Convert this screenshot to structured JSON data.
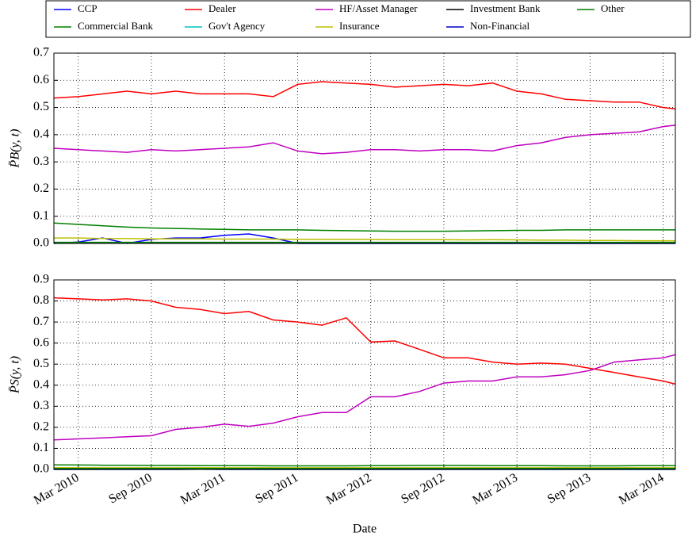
{
  "chart_data": [
    {
      "type": "line",
      "ylabel": "P̄B(y, t)",
      "x": [
        "2010-01",
        "2010-03",
        "2010-05",
        "2010-07",
        "2010-09",
        "2010-11",
        "2011-01",
        "2011-03",
        "2011-05",
        "2011-07",
        "2011-09",
        "2011-11",
        "2012-01",
        "2012-03",
        "2012-05",
        "2012-07",
        "2012-09",
        "2012-11",
        "2013-01",
        "2013-03",
        "2013-05",
        "2013-07",
        "2013-09",
        "2013-11",
        "2014-01",
        "2014-03",
        "2014-04"
      ],
      "xlim": [
        "2010-01",
        "2014-04"
      ],
      "xticks": [
        "2010-03",
        "2010-09",
        "2011-03",
        "2011-09",
        "2012-03",
        "2012-09",
        "2013-03",
        "2013-09",
        "2014-03"
      ],
      "ylim": [
        0,
        0.7
      ],
      "yticks": [
        {
          "value": 0,
          "label": "0.0"
        },
        0.1,
        0.2,
        0.3,
        0.4,
        0.5,
        0.6,
        0.7
      ],
      "grid": true,
      "series": [
        {
          "name": "CCP",
          "color": "#0000ff",
          "values": [
            0,
            0.005,
            0.02,
            0,
            0.015,
            0.02,
            0.02,
            0.03,
            0.035,
            0.02,
            0,
            0,
            0,
            0,
            0,
            0,
            0,
            0,
            0,
            0,
            0,
            0,
            0,
            0,
            0,
            0,
            0
          ]
        },
        {
          "name": "Commercial Bank",
          "color": "#008000",
          "values": [
            0.075,
            0.07,
            0.065,
            0.06,
            0.057,
            0.055,
            0.053,
            0.052,
            0.05,
            0.05,
            0.05,
            0.048,
            0.047,
            0.046,
            0.045,
            0.045,
            0.045,
            0.046,
            0.047,
            0.048,
            0.048,
            0.05,
            0.05,
            0.05,
            0.05,
            0.05,
            0.05
          ]
        },
        {
          "name": "Dealer",
          "color": "#ff0000",
          "values": [
            0.535,
            0.54,
            0.55,
            0.56,
            0.55,
            0.56,
            0.55,
            0.55,
            0.55,
            0.54,
            0.585,
            0.595,
            0.59,
            0.585,
            0.575,
            0.58,
            0.585,
            0.58,
            0.59,
            0.56,
            0.55,
            0.53,
            0.525,
            0.52,
            0.52,
            0.5,
            0.495
          ]
        },
        {
          "name": "Gov't Agency",
          "color": "#00bfbf",
          "values": [
            0.002,
            0.002,
            0.002,
            0.002,
            0.002,
            0.002,
            0.002,
            0.002,
            0.002,
            0.002,
            0.002,
            0.002,
            0.002,
            0.002,
            0.002,
            0.002,
            0.002,
            0.002,
            0.002,
            0.002,
            0.002,
            0.002,
            0.002,
            0.002,
            0.002,
            0.002,
            0.002
          ]
        },
        {
          "name": "HF/Asset Manager",
          "color": "#bf00bf",
          "values": [
            0.35,
            0.345,
            0.34,
            0.335,
            0.345,
            0.34,
            0.345,
            0.35,
            0.355,
            0.37,
            0.34,
            0.33,
            0.335,
            0.345,
            0.345,
            0.34,
            0.345,
            0.345,
            0.34,
            0.36,
            0.37,
            0.39,
            0.4,
            0.405,
            0.41,
            0.43,
            0.435
          ]
        },
        {
          "name": "Insurance",
          "color": "#bfbf00",
          "values": [
            0.02,
            0.02,
            0.018,
            0.018,
            0.017,
            0.017,
            0.017,
            0.016,
            0.016,
            0.016,
            0.015,
            0.015,
            0.015,
            0.015,
            0.014,
            0.014,
            0.014,
            0.013,
            0.014,
            0.013,
            0.012,
            0.012,
            0.011,
            0.011,
            0.01,
            0.01,
            0.01
          ]
        },
        {
          "name": "Investment Bank",
          "color": "#000000",
          "values": [
            0.003,
            0.003,
            0.003,
            0.003,
            0.003,
            0.003,
            0.003,
            0.003,
            0.003,
            0.003,
            0.003,
            0.003,
            0.003,
            0.003,
            0.003,
            0.003,
            0.003,
            0.003,
            0.003,
            0.003,
            0.003,
            0.003,
            0.003,
            0.003,
            0.003,
            0.003,
            0.003
          ]
        },
        {
          "name": "Non-Financial",
          "color": "#0000bf",
          "values": [
            0.001,
            0.001,
            0.001,
            0.001,
            0.001,
            0.001,
            0.001,
            0.001,
            0.001,
            0.001,
            0.001,
            0.001,
            0.001,
            0.001,
            0.001,
            0.001,
            0.001,
            0.001,
            0.001,
            0.001,
            0.001,
            0.001,
            0.001,
            0.001,
            0.001,
            0.001,
            0.001
          ]
        },
        {
          "name": "Other",
          "color": "#007f00",
          "values": [
            0.004,
            0.004,
            0.004,
            0.004,
            0.004,
            0.004,
            0.004,
            0.004,
            0.004,
            0.004,
            0.004,
            0.004,
            0.004,
            0.004,
            0.004,
            0.004,
            0.004,
            0.004,
            0.004,
            0.004,
            0.004,
            0.004,
            0.004,
            0.004,
            0.004,
            0.004,
            0.004
          ]
        }
      ]
    },
    {
      "type": "line",
      "ylabel": "P̄S(y, t)",
      "xlabel": "Date",
      "x": [
        "2010-01",
        "2010-03",
        "2010-05",
        "2010-07",
        "2010-09",
        "2010-11",
        "2011-01",
        "2011-03",
        "2011-05",
        "2011-07",
        "2011-09",
        "2011-11",
        "2012-01",
        "2012-03",
        "2012-05",
        "2012-07",
        "2012-09",
        "2012-11",
        "2013-01",
        "2013-03",
        "2013-05",
        "2013-07",
        "2013-09",
        "2013-11",
        "2014-01",
        "2014-03",
        "2014-04"
      ],
      "xlim": [
        "2010-01",
        "2014-04"
      ],
      "xticks": [
        {
          "value": "2010-03",
          "label": "Mar 2010"
        },
        {
          "value": "2010-09",
          "label": "Sep 2010"
        },
        {
          "value": "2011-03",
          "label": "Mar 2011"
        },
        {
          "value": "2011-09",
          "label": "Sep 2011"
        },
        {
          "value": "2012-03",
          "label": "Mar 2012"
        },
        {
          "value": "2012-09",
          "label": "Sep 2012"
        },
        {
          "value": "2013-03",
          "label": "Mar 2013"
        },
        {
          "value": "2013-09",
          "label": "Sep 2013"
        },
        {
          "value": "2014-03",
          "label": "Mar 2014"
        }
      ],
      "ylim": [
        0,
        0.9
      ],
      "yticks": [
        {
          "value": 0,
          "label": "0.0"
        },
        0.1,
        0.2,
        0.3,
        0.4,
        0.5,
        0.6,
        0.7,
        0.8,
        0.9
      ],
      "grid": true,
      "series": [
        {
          "name": "CCP",
          "color": "#0000ff",
          "values": [
            0,
            0,
            0,
            0,
            0,
            0,
            0.001,
            0,
            0,
            0,
            0,
            0,
            0,
            0,
            0,
            0,
            0,
            0,
            0,
            0,
            0,
            0,
            0,
            0,
            0,
            0,
            0
          ]
        },
        {
          "name": "Commercial Bank",
          "color": "#008000",
          "values": [
            0.022,
            0.021,
            0.02,
            0.02,
            0.019,
            0.019,
            0.018,
            0.018,
            0.018,
            0.017,
            0.017,
            0.017,
            0.017,
            0.018,
            0.018,
            0.019,
            0.019,
            0.019,
            0.018,
            0.018,
            0.018,
            0.017,
            0.017,
            0.017,
            0.018,
            0.018,
            0.018
          ]
        },
        {
          "name": "Dealer",
          "color": "#ff0000",
          "values": [
            0.815,
            0.81,
            0.805,
            0.81,
            0.8,
            0.77,
            0.76,
            0.74,
            0.75,
            0.71,
            0.7,
            0.685,
            0.72,
            0.605,
            0.61,
            0.57,
            0.53,
            0.53,
            0.51,
            0.5,
            0.505,
            0.5,
            0.48,
            0.46,
            0.44,
            0.42,
            0.405
          ]
        },
        {
          "name": "Gov't Agency",
          "color": "#00bfbf",
          "values": [
            0.003,
            0.003,
            0.003,
            0.003,
            0.003,
            0.003,
            0.003,
            0.003,
            0.003,
            0.003,
            0.003,
            0.003,
            0.003,
            0.003,
            0.003,
            0.003,
            0.003,
            0.003,
            0.003,
            0.003,
            0.003,
            0.003,
            0.003,
            0.003,
            0.003,
            0.003,
            0.003
          ]
        },
        {
          "name": "HF/Asset Manager",
          "color": "#bf00bf",
          "values": [
            0.14,
            0.145,
            0.15,
            0.155,
            0.16,
            0.19,
            0.2,
            0.215,
            0.205,
            0.22,
            0.25,
            0.27,
            0.27,
            0.345,
            0.345,
            0.37,
            0.41,
            0.42,
            0.42,
            0.44,
            0.44,
            0.45,
            0.47,
            0.51,
            0.52,
            0.53,
            0.545
          ]
        },
        {
          "name": "Insurance",
          "color": "#bfbf00",
          "values": [
            0.008,
            0.008,
            0.008,
            0.008,
            0.008,
            0.008,
            0.008,
            0.008,
            0.008,
            0.008,
            0.008,
            0.008,
            0.008,
            0.008,
            0.008,
            0.008,
            0.008,
            0.008,
            0.008,
            0.008,
            0.008,
            0.008,
            0.008,
            0.008,
            0.008,
            0.008,
            0.008
          ]
        },
        {
          "name": "Investment Bank",
          "color": "#000000",
          "values": [
            0.002,
            0.002,
            0.002,
            0.002,
            0.002,
            0.002,
            0.002,
            0.002,
            0.002,
            0.002,
            0.002,
            0.002,
            0.002,
            0.002,
            0.002,
            0.002,
            0.002,
            0.002,
            0.002,
            0.002,
            0.002,
            0.002,
            0.002,
            0.002,
            0.002,
            0.002,
            0.002
          ]
        },
        {
          "name": "Non-Financial",
          "color": "#0000bf",
          "values": [
            0.001,
            0.001,
            0.001,
            0.001,
            0.001,
            0.001,
            0.001,
            0.001,
            0.001,
            0.001,
            0.001,
            0.001,
            0.001,
            0.001,
            0.001,
            0.001,
            0.001,
            0.001,
            0.001,
            0.001,
            0.001,
            0.001,
            0.001,
            0.001,
            0.001,
            0.001,
            0.001
          ]
        },
        {
          "name": "Other",
          "color": "#007f00",
          "values": [
            0.005,
            0.005,
            0.005,
            0.005,
            0.005,
            0.005,
            0.005,
            0.005,
            0.005,
            0.005,
            0.005,
            0.005,
            0.005,
            0.005,
            0.005,
            0.005,
            0.005,
            0.005,
            0.005,
            0.005,
            0.005,
            0.005,
            0.005,
            0.005,
            0.005,
            0.005,
            0.005
          ]
        }
      ]
    }
  ]
}
